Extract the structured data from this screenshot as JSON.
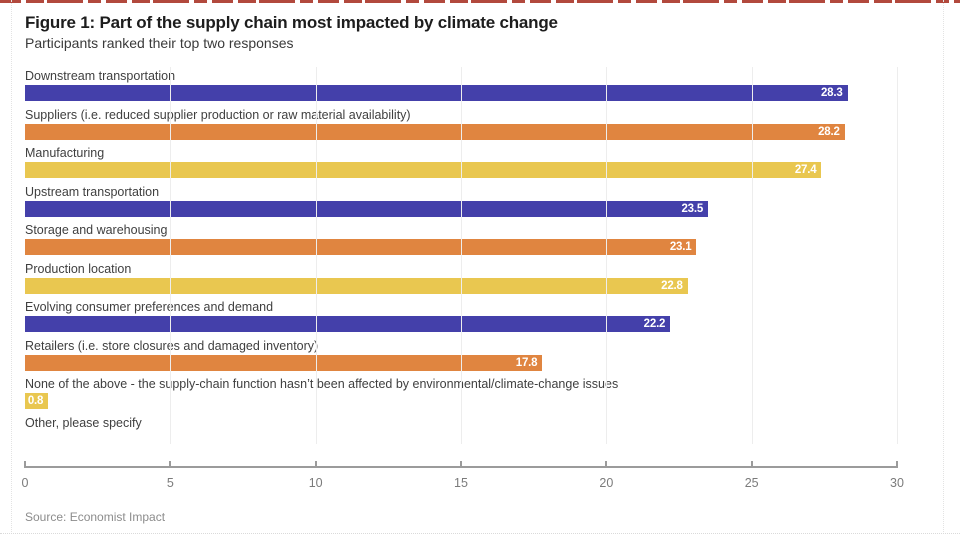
{
  "header": {
    "title": "Figure 1: Part of the supply chain most impacted by climate change",
    "subtitle": "Participants ranked their top two responses"
  },
  "footer": {
    "source": "Source: Economist Impact"
  },
  "colors": {
    "blue": "#4440AA",
    "orange": "#E08540",
    "yellow": "#E9C750",
    "top_rule_red": "#B2493D",
    "axis_gray": "#9B9B9B",
    "grid_gray": "#EDEDED"
  },
  "chart_data": {
    "type": "bar",
    "orientation": "horizontal",
    "title": "Figure 1: Part of the supply chain most impacted by climate change",
    "subtitle": "Participants ranked their top two responses",
    "xlabel": "",
    "ylabel": "",
    "xlim": [
      0,
      30
    ],
    "x_ticks": [
      0,
      5,
      10,
      15,
      20,
      25,
      30
    ],
    "grid": true,
    "legend": "none",
    "bars": [
      {
        "label": "Downstream transportation",
        "value": 28.3,
        "color": "#4440AA"
      },
      {
        "label": "Suppliers (i.e. reduced supplier production or raw material availability)",
        "value": 28.2,
        "color": "#E08540"
      },
      {
        "label": "Manufacturing",
        "value": 27.4,
        "color": "#E9C750"
      },
      {
        "label": "Upstream transportation",
        "value": 23.5,
        "color": "#4440AA"
      },
      {
        "label": "Storage and warehousing",
        "value": 23.1,
        "color": "#E08540"
      },
      {
        "label": "Production location",
        "value": 22.8,
        "color": "#E9C750"
      },
      {
        "label": "Evolving consumer preferences and demand",
        "value": 22.2,
        "color": "#4440AA"
      },
      {
        "label": "Retailers (i.e. store closures and damaged inventory)",
        "value": 17.8,
        "color": "#E08540"
      },
      {
        "label": "None of the above - the supply-chain function hasn’t been affected by environmental/climate-change issues",
        "value": 0.8,
        "color": "#E9C750"
      },
      {
        "label": "Other, please specify",
        "value": null,
        "color": null
      }
    ]
  }
}
